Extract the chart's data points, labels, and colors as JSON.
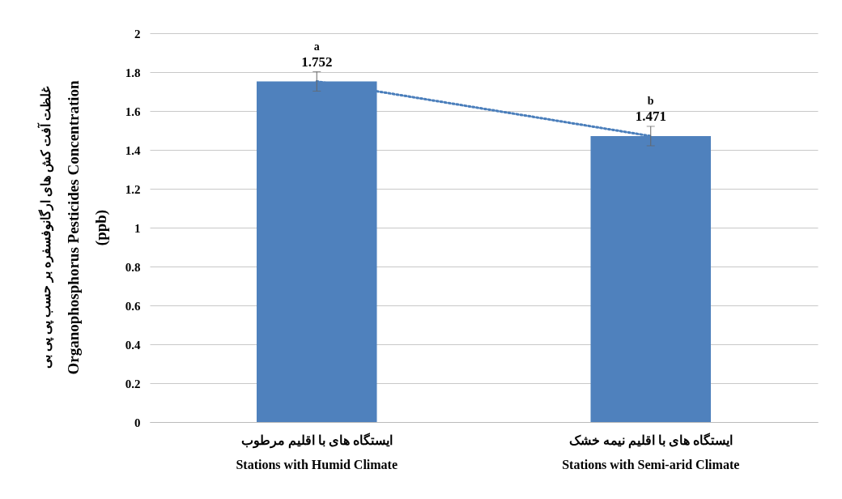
{
  "chart_data": {
    "type": "bar",
    "ylabel": "غلظت آفت کش های ارگانوفسفره بر حسب پی پی بی\nOrganophosphorus Pesticides Concentration\n(ppb)",
    "categories": [
      "ایستگاه های با اقلیم مرطوب\nStations with Humid Climate",
      "ایستگاه های با اقلیم نیمه خشک\nStations with Semi-arid Climate"
    ],
    "series": [
      {
        "color": "#4f81bd",
        "values": [
          1.752,
          1.471
        ],
        "errors": [
          0.05,
          0.05
        ],
        "value_labels": [
          "1.752",
          "1.471"
        ]
      },
      {
        "type": "line",
        "x": [
          "ایستگاه های با اقلیم مرطوب\nStations with Humid Climate",
          "ایستگاه های با اقلیم نیمه خشک\nStations with Semi-arid Climate"
        ],
        "values": [
          1.752,
          1.471
        ],
        "color": "#4a7ebb",
        "line_style": "dotted"
      }
    ],
    "annotations": [
      "a",
      "b"
    ],
    "ylim": [
      0,
      2
    ],
    "yticks": [
      0,
      0.2,
      0.4,
      0.6,
      0.8,
      1,
      1.2,
      1.4,
      1.6,
      1.8,
      2
    ],
    "grid": "y"
  }
}
